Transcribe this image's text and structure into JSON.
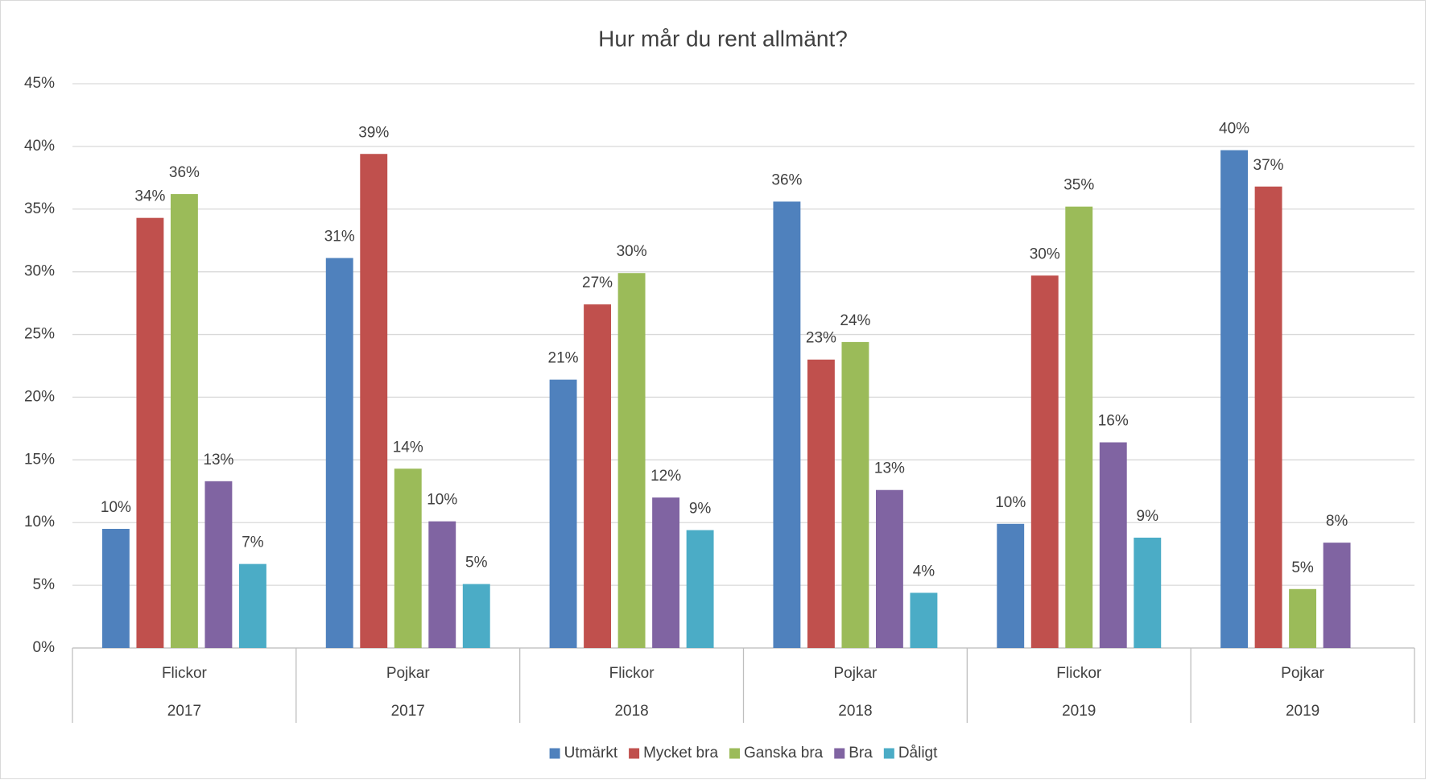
{
  "chart_data": {
    "type": "bar",
    "title": "Hur mår du rent allmänt?",
    "categories": [
      "Flickor",
      "Pojkar",
      "Flickor",
      "Pojkar",
      "Flickor",
      "Pojkar"
    ],
    "category_groups": [
      "2017",
      "2017",
      "2018",
      "2018",
      "2019",
      "2019"
    ],
    "series": [
      {
        "name": "Utmärkt",
        "color": "#4f81bd",
        "values": [
          9.5,
          31.1,
          21.4,
          35.6,
          9.9,
          39.7
        ],
        "value_labels": [
          "10%",
          "31%",
          "21%",
          "36%",
          "10%",
          "40%"
        ]
      },
      {
        "name": "Mycket bra",
        "color": "#c0504d",
        "values": [
          34.3,
          39.4,
          27.4,
          23.0,
          29.7,
          36.8
        ],
        "value_labels": [
          "34%",
          "39%",
          "27%",
          "23%",
          "30%",
          "37%"
        ]
      },
      {
        "name": "Ganska bra",
        "color": "#9bbb59",
        "values": [
          36.2,
          14.3,
          29.9,
          24.4,
          35.2,
          4.7
        ],
        "value_labels": [
          "36%",
          "14%",
          "30%",
          "24%",
          "35%",
          "5%"
        ]
      },
      {
        "name": "Bra",
        "color": "#8064a2",
        "values": [
          13.3,
          10.1,
          12.0,
          12.6,
          16.4,
          8.4
        ],
        "value_labels": [
          "13%",
          "10%",
          "12%",
          "13%",
          "16%",
          "8%"
        ]
      },
      {
        "name": "Dåligt",
        "color": "#4bacc6",
        "values": [
          6.7,
          5.1,
          9.4,
          4.4,
          8.8,
          null
        ],
        "value_labels": [
          "7%",
          "5%",
          "9%",
          "4%",
          "9%",
          null
        ]
      }
    ],
    "ylim": [
      0,
      45
    ],
    "yticks": [
      {
        "value": 0,
        "label": "0%"
      },
      {
        "value": 5,
        "label": "5%"
      },
      {
        "value": 10,
        "label": "10%"
      },
      {
        "value": 15,
        "label": "15%"
      },
      {
        "value": 20,
        "label": "20%"
      },
      {
        "value": 25,
        "label": "25%"
      },
      {
        "value": 30,
        "label": "30%"
      },
      {
        "value": 35,
        "label": "35%"
      },
      {
        "value": 40,
        "label": "40%"
      },
      {
        "value": 45,
        "label": "45%"
      }
    ],
    "grid": true,
    "legend": "bottom"
  }
}
